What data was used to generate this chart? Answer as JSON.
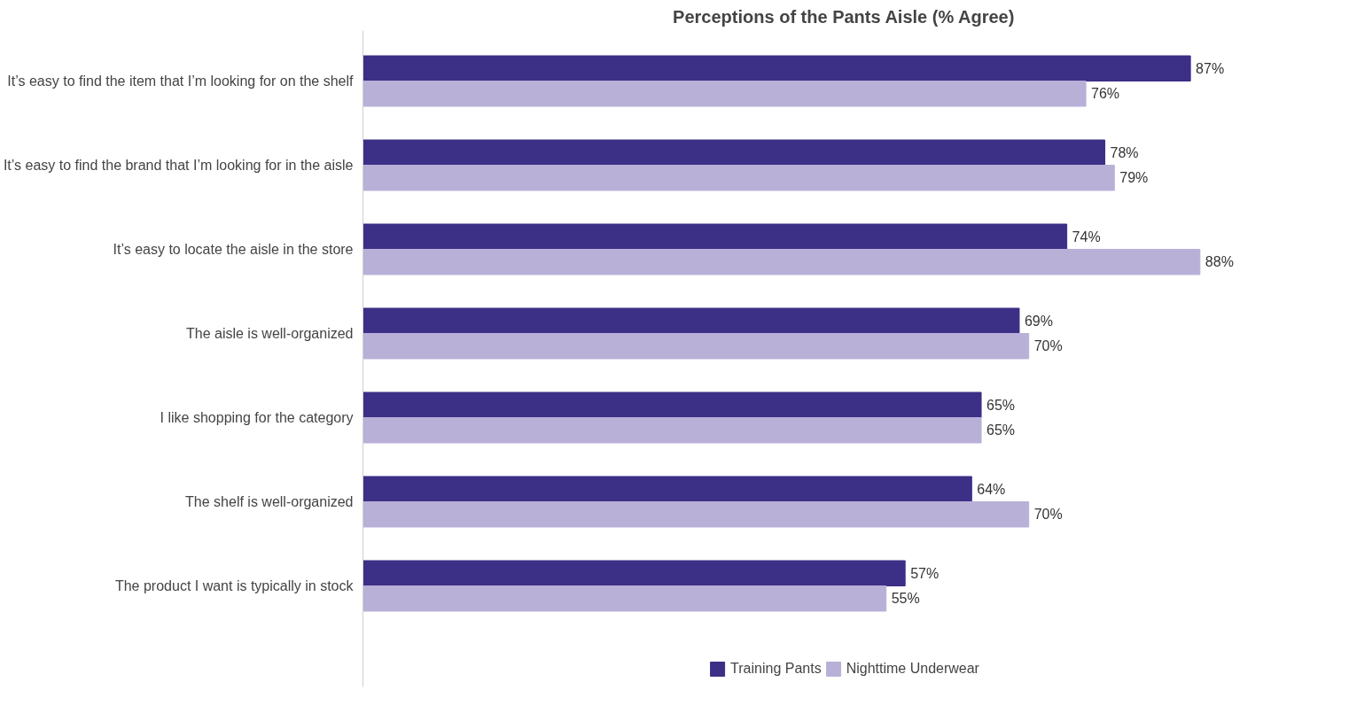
{
  "chart_data": {
    "type": "bar",
    "orientation": "horizontal",
    "title": "Perceptions of the Pants Aisle (% Agree)",
    "categories": [
      "It’s easy to find the item that I’m looking for on the shelf",
      "It’s easy to find the brand that I’m looking for in the aisle",
      "It’s easy to locate the aisle in the store",
      "The aisle is well-organized",
      "I like shopping for the category",
      "The shelf is well-organized",
      "The product I want is typically in stock"
    ],
    "series": [
      {
        "name": "Training Pants",
        "color": "#3b2f86",
        "values": [
          87,
          78,
          74,
          69,
          65,
          64,
          57
        ],
        "value_labels": [
          "87%",
          "78%",
          "74%",
          "69%",
          "65%",
          "64%",
          "57%"
        ]
      },
      {
        "name": "Nighttime Underwear",
        "color": "#b9b0d8",
        "values": [
          76,
          79,
          88,
          70,
          65,
          70,
          55
        ],
        "value_labels": [
          "76%",
          "79%",
          "88%",
          "70%",
          "65%",
          "70%",
          "55%"
        ]
      }
    ],
    "legend": "bottom",
    "grid": false
  }
}
